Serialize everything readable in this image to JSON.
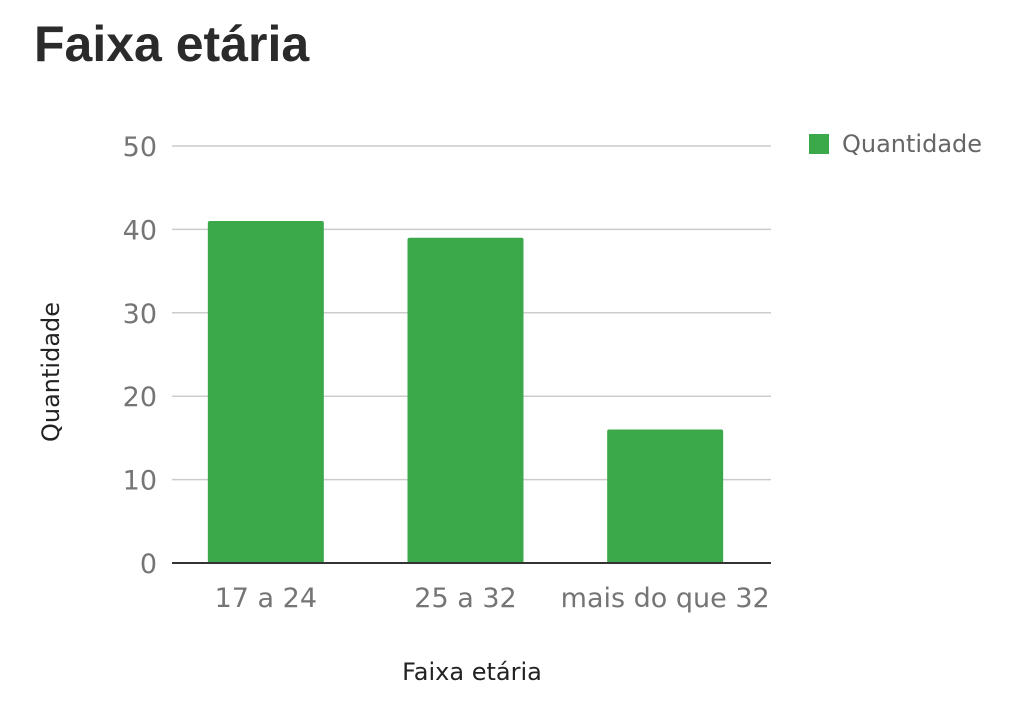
{
  "chart_data": {
    "type": "bar",
    "title": "Faixa etária",
    "xlabel": "Faixa etária",
    "ylabel": "Quantidade",
    "categories": [
      "17 a 24",
      "25 a 32",
      "mais do que 32"
    ],
    "series": [
      {
        "name": "Quantidade",
        "values": [
          41,
          39,
          16
        ],
        "color": "#3ba84a"
      }
    ],
    "ylim": [
      0,
      50
    ],
    "yticks": [
      0,
      10,
      20,
      30,
      40,
      50
    ],
    "grid": true,
    "legend": "top-right"
  }
}
